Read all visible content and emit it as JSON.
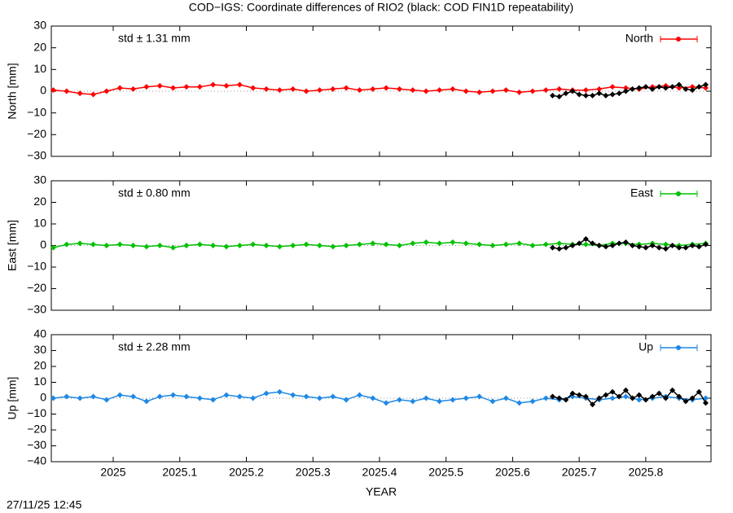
{
  "title": "COD−IGS: Coordinate differences of RIO2 (black: COD FIN1D repeatability)",
  "timestamp": "27/11/25 12:45",
  "chart_data": [
    {
      "type": "scatter",
      "ylabel": "North [mm]",
      "annotation": "std ± 1.31 mm",
      "annotation_color": "#ff0000",
      "xlim": [
        2024.907,
        2025.898
      ],
      "xticks": [
        2025,
        2025.1,
        2025.2,
        2025.3,
        2025.4,
        2025.5,
        2025.6,
        2025.7,
        2025.8
      ],
      "ylim": [
        -30,
        30
      ],
      "yticks": [
        {
          "value": -30,
          "label": "−30"
        },
        {
          "value": -20,
          "label": "−20"
        },
        {
          "value": -10,
          "label": "−10"
        },
        0,
        10,
        20,
        30
      ],
      "series": [
        {
          "name": "North",
          "color": "#ff0000",
          "x": [
            2024.91,
            2024.93,
            2024.95,
            2024.97,
            2024.99,
            2025.01,
            2025.03,
            2025.05,
            2025.07,
            2025.09,
            2025.11,
            2025.13,
            2025.15,
            2025.17,
            2025.19,
            2025.21,
            2025.23,
            2025.25,
            2025.27,
            2025.29,
            2025.31,
            2025.33,
            2025.35,
            2025.37,
            2025.39,
            2025.41,
            2025.43,
            2025.45,
            2025.47,
            2025.49,
            2025.51,
            2025.53,
            2025.55,
            2025.57,
            2025.59,
            2025.61,
            2025.63,
            2025.65,
            2025.67,
            2025.69,
            2025.71,
            2025.73,
            2025.75,
            2025.77,
            2025.79,
            2025.81,
            2025.83,
            2025.85,
            2025.87,
            2025.89
          ],
          "values": [
            0.5,
            0,
            -1,
            -1.5,
            0,
            1.5,
            1,
            2,
            2.5,
            1.5,
            2,
            2,
            3,
            2.5,
            3,
            1.5,
            1,
            0.5,
            1,
            0,
            0.5,
            1,
            1.5,
            0.5,
            1,
            1.5,
            1,
            0.5,
            0,
            0.5,
            1,
            0,
            -0.5,
            0,
            0.5,
            -0.5,
            0,
            0.5,
            1,
            0.5,
            0.5,
            1,
            2,
            1.5,
            1,
            2,
            2.5,
            1.5,
            2,
            1.5
          ]
        },
        {
          "color": "#000000",
          "x": [
            2025.66,
            2025.67,
            2025.68,
            2025.69,
            2025.7,
            2025.71,
            2025.72,
            2025.73,
            2025.74,
            2025.75,
            2025.76,
            2025.77,
            2025.78,
            2025.79,
            2025.8,
            2025.81,
            2025.82,
            2025.83,
            2025.84,
            2025.85,
            2025.86,
            2025.87,
            2025.88,
            2025.89
          ],
          "values": [
            -2,
            -2.5,
            -1,
            0,
            -1.5,
            -2,
            -2,
            -1,
            -2,
            -1.5,
            -1,
            0,
            1,
            1.5,
            2,
            1,
            2,
            1.5,
            2,
            3,
            1,
            0.5,
            2,
            3
          ]
        }
      ]
    },
    {
      "type": "scatter",
      "ylabel": "East [mm]",
      "annotation": "std ± 0.80 mm",
      "annotation_color": "#00c000",
      "xlim": [
        2024.907,
        2025.898
      ],
      "xticks": [
        2025,
        2025.1,
        2025.2,
        2025.3,
        2025.4,
        2025.5,
        2025.6,
        2025.7,
        2025.8
      ],
      "ylim": [
        -30,
        30
      ],
      "yticks": [
        {
          "value": -30,
          "label": "−30"
        },
        {
          "value": -20,
          "label": "−20"
        },
        {
          "value": -10,
          "label": "−10"
        },
        0,
        10,
        20,
        30
      ],
      "series": [
        {
          "name": "East",
          "color": "#00c000",
          "x": [
            2024.91,
            2024.93,
            2024.95,
            2024.97,
            2024.99,
            2025.01,
            2025.03,
            2025.05,
            2025.07,
            2025.09,
            2025.11,
            2025.13,
            2025.15,
            2025.17,
            2025.19,
            2025.21,
            2025.23,
            2025.25,
            2025.27,
            2025.29,
            2025.31,
            2025.33,
            2025.35,
            2025.37,
            2025.39,
            2025.41,
            2025.43,
            2025.45,
            2025.47,
            2025.49,
            2025.51,
            2025.53,
            2025.55,
            2025.57,
            2025.59,
            2025.61,
            2025.63,
            2025.65,
            2025.67,
            2025.69,
            2025.71,
            2025.73,
            2025.75,
            2025.77,
            2025.79,
            2025.81,
            2025.83,
            2025.85,
            2025.87,
            2025.89
          ],
          "values": [
            -1,
            0.5,
            1,
            0.5,
            0,
            0.5,
            0,
            -0.5,
            0,
            -1,
            0,
            0.5,
            0,
            -0.5,
            0,
            0.5,
            0,
            -0.5,
            0,
            0.5,
            0,
            -0.5,
            0,
            0.5,
            1,
            0.5,
            0,
            1,
            1.5,
            1,
            1.5,
            1,
            0.5,
            0,
            0.5,
            1,
            0,
            0.5,
            1,
            0.5,
            0.5,
            0,
            1,
            1,
            0.5,
            1,
            0.5,
            0,
            0.5,
            1
          ]
        },
        {
          "color": "#000000",
          "x": [
            2025.66,
            2025.67,
            2025.68,
            2025.69,
            2025.7,
            2025.71,
            2025.72,
            2025.73,
            2025.74,
            2025.75,
            2025.76,
            2025.77,
            2025.78,
            2025.79,
            2025.8,
            2025.81,
            2025.82,
            2025.83,
            2025.84,
            2025.85,
            2025.86,
            2025.87,
            2025.88,
            2025.89
          ],
          "values": [
            -1,
            -1.5,
            -1,
            0,
            1,
            3,
            1,
            0,
            -0.5,
            0,
            1,
            1.5,
            0,
            -0.5,
            -1,
            0,
            -1,
            -1.5,
            0,
            -1,
            -1,
            0,
            -0.5,
            0.5
          ]
        }
      ]
    },
    {
      "type": "scatter",
      "ylabel": "Up [mm]",
      "xlabel": "YEAR",
      "annotation": "std ± 2.28 mm",
      "annotation_color": "#1e88e5",
      "xlim": [
        2024.907,
        2025.898
      ],
      "xticks": [
        2025,
        2025.1,
        2025.2,
        2025.3,
        2025.4,
        2025.5,
        2025.6,
        2025.7,
        2025.8
      ],
      "ylim": [
        -40,
        40
      ],
      "yticks": [
        {
          "value": -40,
          "label": "−40"
        },
        {
          "value": -30,
          "label": "−30"
        },
        {
          "value": -20,
          "label": "−20"
        },
        {
          "value": -10,
          "label": "−10"
        },
        0,
        10,
        20,
        30,
        40
      ],
      "series": [
        {
          "name": "Up",
          "color": "#1e88e5",
          "x": [
            2024.91,
            2024.93,
            2024.95,
            2024.97,
            2024.99,
            2025.01,
            2025.03,
            2025.05,
            2025.07,
            2025.09,
            2025.11,
            2025.13,
            2025.15,
            2025.17,
            2025.19,
            2025.21,
            2025.23,
            2025.25,
            2025.27,
            2025.29,
            2025.31,
            2025.33,
            2025.35,
            2025.37,
            2025.39,
            2025.41,
            2025.43,
            2025.45,
            2025.47,
            2025.49,
            2025.51,
            2025.53,
            2025.55,
            2025.57,
            2025.59,
            2025.61,
            2025.63,
            2025.65,
            2025.67,
            2025.69,
            2025.71,
            2025.73,
            2025.75,
            2025.77,
            2025.79,
            2025.81,
            2025.83,
            2025.85,
            2025.87,
            2025.89
          ],
          "values": [
            0,
            1,
            0,
            1,
            -1,
            2,
            1,
            -2,
            1,
            2,
            1,
            0,
            -1,
            2,
            1,
            0,
            3,
            4,
            2,
            1,
            0,
            1,
            -1,
            2,
            0,
            -3,
            -1,
            -2,
            0,
            -2,
            -1,
            0,
            1,
            -2,
            0,
            -3,
            -2,
            0,
            -1,
            1,
            0,
            -1,
            0,
            1,
            -1,
            0,
            1,
            0,
            -1,
            0
          ]
        },
        {
          "color": "#000000",
          "x": [
            2025.66,
            2025.67,
            2025.68,
            2025.69,
            2025.7,
            2025.71,
            2025.72,
            2025.73,
            2025.74,
            2025.75,
            2025.76,
            2025.77,
            2025.78,
            2025.79,
            2025.8,
            2025.81,
            2025.82,
            2025.83,
            2025.84,
            2025.85,
            2025.86,
            2025.87,
            2025.88,
            2025.89
          ],
          "values": [
            1,
            0,
            -1,
            3,
            2,
            1,
            -4,
            0,
            2,
            4,
            1,
            5,
            0,
            2,
            -1,
            1,
            3,
            0,
            5,
            1,
            -2,
            0,
            4,
            -3
          ]
        }
      ]
    }
  ]
}
